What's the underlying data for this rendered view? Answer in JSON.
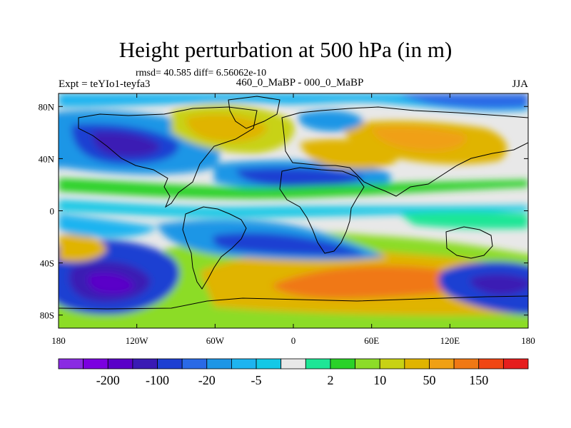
{
  "title": "Height perturbation at 500 hPa (in m)",
  "stats_line": "rmsd= 40.585 diff= 6.56062e-10",
  "experiment": "Expt = teYIo1-teyfa3",
  "period": "460_0_MaBP - 000_0_MaBP",
  "season": "JJA",
  "lat_ticks": [
    {
      "value": 80,
      "label": "80N"
    },
    {
      "value": 40,
      "label": "40N"
    },
    {
      "value": 0,
      "label": "0"
    },
    {
      "value": -40,
      "label": "40S"
    },
    {
      "value": -80,
      "label": "80S"
    }
  ],
  "lon_ticks": [
    {
      "value": -180,
      "label": "180"
    },
    {
      "value": -120,
      "label": "120W"
    },
    {
      "value": -60,
      "label": "60W"
    },
    {
      "value": 0,
      "label": "0"
    },
    {
      "value": 60,
      "label": "60E"
    },
    {
      "value": 120,
      "label": "120E"
    },
    {
      "value": 180,
      "label": "180"
    }
  ],
  "colorbar": {
    "colors": [
      "#8a2be2",
      "#7b00e0",
      "#5a00c8",
      "#3a1ab4",
      "#1e3fd2",
      "#2a6ae6",
      "#1e96e6",
      "#1eb4f0",
      "#14c8e6",
      "#e8e8e8",
      "#1ee696",
      "#2ad228",
      "#8cdc28",
      "#c8d214",
      "#e0b400",
      "#f0a014",
      "#f07814",
      "#f04614",
      "#e61e1e"
    ],
    "labels": [
      {
        "text": "-200",
        "after_box": 1
      },
      {
        "text": "-100",
        "after_box": 3
      },
      {
        "text": "-20",
        "after_box": 5
      },
      {
        "text": "-5",
        "after_box": 7
      },
      {
        "text": "2",
        "after_box": 10
      },
      {
        "text": "10",
        "after_box": 12
      },
      {
        "text": "50",
        "after_box": 14
      },
      {
        "text": "150",
        "after_box": 16
      }
    ]
  }
}
